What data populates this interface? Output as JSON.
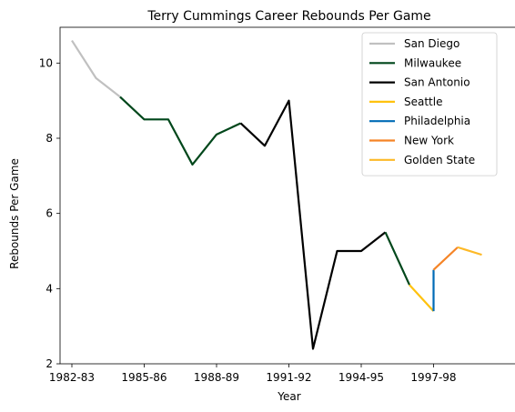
{
  "chart_data": {
    "type": "line",
    "title": "Terry Cummings Career Rebounds Per Game",
    "xlabel": "Year",
    "ylabel": "Rebounds Per Game",
    "ylim": [
      2,
      11
    ],
    "yticks": [
      2,
      4,
      6,
      8,
      10
    ],
    "xticks": [
      "1982-83",
      "1985-86",
      "1988-89",
      "1991-92",
      "1994-95",
      "1997-98"
    ],
    "x": [
      "1982-83",
      "1983-84",
      "1984-85",
      "1985-86",
      "1986-87",
      "1987-88",
      "1988-89",
      "1989-90",
      "1990-91",
      "1991-92",
      "1992-93",
      "1993-94",
      "1994-95",
      "1995-96",
      "1996-97",
      "1997-98",
      "1998-99",
      "1999-00"
    ],
    "grid": false,
    "legend_position": "top-right",
    "series": [
      {
        "name": "San Diego",
        "color": "#c0c0c0",
        "points": [
          [
            "1982-83",
            10.6
          ],
          [
            "1983-84",
            9.6
          ],
          [
            "1984-85",
            9.1
          ]
        ]
      },
      {
        "name": "Milwaukee",
        "color": "#00471b",
        "points": [
          [
            "1984-85",
            9.1
          ],
          [
            "1985-86",
            8.5
          ],
          [
            "1986-87",
            8.5
          ],
          [
            "1987-88",
            7.3
          ],
          [
            "1988-89",
            8.1
          ],
          [
            "1989-90",
            8.4
          ]
        ]
      },
      {
        "name": "San Antonio",
        "color": "#000000",
        "points": [
          [
            "1989-90",
            8.4
          ],
          [
            "1990-91",
            7.8
          ],
          [
            "1991-92",
            9.0
          ],
          [
            "1992-93",
            2.4
          ],
          [
            "1993-94",
            5.0
          ],
          [
            "1994-95",
            5.0
          ],
          [
            "1995-96",
            5.5
          ]
        ]
      },
      {
        "name": "Milwaukee",
        "color": "#00471b",
        "legend": false,
        "points": [
          [
            "1995-96",
            5.5
          ],
          [
            "1996-97",
            4.1
          ]
        ]
      },
      {
        "name": "Seattle",
        "color": "#ffc20e",
        "points": [
          [
            "1996-97",
            4.1
          ],
          [
            "1997-98",
            3.4
          ]
        ]
      },
      {
        "name": "Philadelphia",
        "color": "#006bb6",
        "points": [
          [
            "1997-98",
            3.4
          ],
          [
            "1997-98",
            4.5
          ]
        ]
      },
      {
        "name": "New York",
        "color": "#f58426",
        "points": [
          [
            "1997-98",
            4.5
          ],
          [
            "1998-99",
            5.1
          ]
        ]
      },
      {
        "name": "Golden State",
        "color": "#fdb927",
        "points": [
          [
            "1998-99",
            5.1
          ],
          [
            "1999-00",
            4.9
          ]
        ]
      }
    ]
  }
}
